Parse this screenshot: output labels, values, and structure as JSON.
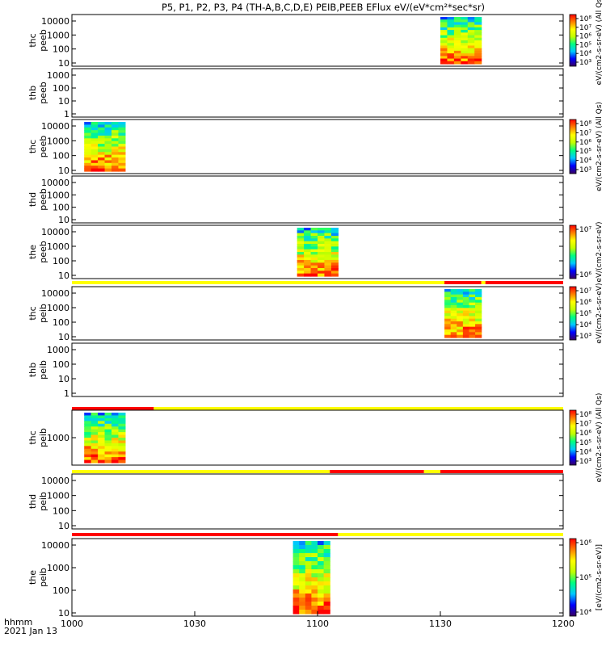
{
  "chart_data": {
    "type": "heatmap",
    "title": "P5, P1, P2, P3, P4 (TH-A,B,C,D,E) PEIB,PEEB EFlux eV/(eV*cm²*sec*sr)",
    "time_axis": {
      "label": "hhmm",
      "date": "2021 Jan 13",
      "range": [
        "10:00",
        "12:00"
      ],
      "ticks": [
        "1000",
        "1030",
        "1100",
        "1130",
        "1200"
      ]
    },
    "panels": [
      {
        "probe": "thc",
        "instrument": "peeb",
        "y_scale": "log",
        "y_ticks": [
          "10",
          "100",
          "1000",
          "10000"
        ],
        "data_interval": [
          "11:30",
          "11:40"
        ],
        "colorbar": {
          "ticks": [
            "10³",
            "10⁴",
            "10⁵",
            "10⁶",
            "10⁷",
            "10⁸"
          ],
          "label": "eV/(cm2-s-sr-eV) (All Qs)"
        },
        "status_bar": []
      },
      {
        "probe": "thb",
        "instrument": "peeb",
        "y_scale": "log",
        "y_ticks": [
          "1",
          "10",
          "100",
          "1000"
        ],
        "data_interval": [],
        "colorbar": null,
        "status_bar": []
      },
      {
        "probe": "thc",
        "instrument": "peeb",
        "y_scale": "log",
        "y_ticks": [
          "10",
          "100",
          "1000",
          "10000"
        ],
        "data_interval": [
          "10:03",
          "10:13"
        ],
        "colorbar": {
          "ticks": [
            "10³",
            "10⁴",
            "10⁵",
            "10⁶",
            "10⁷",
            "10⁸"
          ],
          "label": "eV/(cm2-s-sr-eV) (All Qs)"
        },
        "status_bar": []
      },
      {
        "probe": "thd",
        "instrument": "peeb",
        "y_scale": "log",
        "y_ticks": [
          "10",
          "100",
          "1000",
          "10000"
        ],
        "data_interval": [],
        "colorbar": null,
        "status_bar": []
      },
      {
        "probe": "the",
        "instrument": "peeb",
        "y_scale": "log",
        "y_ticks": [
          "10",
          "100",
          "1000",
          "10000"
        ],
        "data_interval": [
          "10:55",
          "11:05"
        ],
        "colorbar": {
          "ticks": [
            "10⁶",
            "10⁷"
          ],
          "label": "eV/(cm2-s-sr-eV)"
        },
        "status_bar": [
          {
            "from": "10:00",
            "to": "11:31",
            "color": "#ffff00"
          },
          {
            "from": "11:31",
            "to": "11:40",
            "color": "#ff0000"
          },
          {
            "from": "11:40",
            "to": "11:41",
            "color": "#ffff00"
          },
          {
            "from": "11:41",
            "to": "12:00",
            "color": "#ff0000"
          }
        ]
      },
      {
        "probe": "thc",
        "instrument": "peib",
        "y_scale": "log",
        "y_ticks": [
          "10",
          "100",
          "1000",
          "10000"
        ],
        "data_interval": [
          "11:31",
          "11:40"
        ],
        "colorbar": {
          "ticks": [
            "10³",
            "10⁴",
            "10⁵",
            "10⁶",
            "10⁷"
          ],
          "label": "eV/(cm2-s-sr-eV)"
        },
        "status_bar": []
      },
      {
        "probe": "thb",
        "instrument": "peib",
        "y_scale": "log",
        "y_ticks": [
          "1",
          "10",
          "100",
          "1000"
        ],
        "data_interval": [],
        "colorbar": null,
        "status_bar": [
          {
            "from": "10:00",
            "to": "10:20",
            "color": "#ff0000"
          },
          {
            "from": "10:20",
            "to": "12:00",
            "color": "#ffff00"
          }
        ]
      },
      {
        "probe": "thc",
        "instrument": "peib",
        "y_scale": "log",
        "y_ticks": [
          "1000"
        ],
        "data_interval": [
          "10:03",
          "10:13"
        ],
        "colorbar": {
          "ticks": [
            "10³",
            "10⁴",
            "10⁵",
            "10⁶",
            "10⁷",
            "10⁸"
          ],
          "label": "eV/(cm2-s-sr-eV) (All Qs)"
        },
        "status_bar": [
          {
            "from": "10:00",
            "to": "11:03",
            "color": "#ffff00"
          },
          {
            "from": "11:03",
            "to": "11:26",
            "color": "#ff0000"
          },
          {
            "from": "11:26",
            "to": "11:30",
            "color": "#ffff00"
          },
          {
            "from": "11:30",
            "to": "12:00",
            "color": "#ff0000"
          }
        ]
      },
      {
        "probe": "thd",
        "instrument": "peib",
        "y_scale": "log",
        "y_ticks": [
          "10",
          "100",
          "1000",
          "10000"
        ],
        "data_interval": [],
        "colorbar": null,
        "status_bar": [
          {
            "from": "10:00",
            "to": "11:05",
            "color": "#ff0000"
          },
          {
            "from": "11:05",
            "to": "12:00",
            "color": "#ffff00"
          }
        ]
      },
      {
        "probe": "the",
        "instrument": "peib",
        "y_scale": "log",
        "y_ticks": [
          "10",
          "100",
          "1000",
          "10000"
        ],
        "data_interval": [
          "10:54",
          "11:03"
        ],
        "colorbar": {
          "ticks": [
            "10⁴",
            "10⁵",
            "10⁶"
          ],
          "label": "[eV/(cm2-s-sr-eV)]"
        },
        "status_bar": []
      }
    ],
    "colormap": [
      "#3a0060",
      "#0000ff",
      "#00c8ff",
      "#00ff80",
      "#c0ff00",
      "#ffff00",
      "#ff8000",
      "#ff0000"
    ]
  }
}
